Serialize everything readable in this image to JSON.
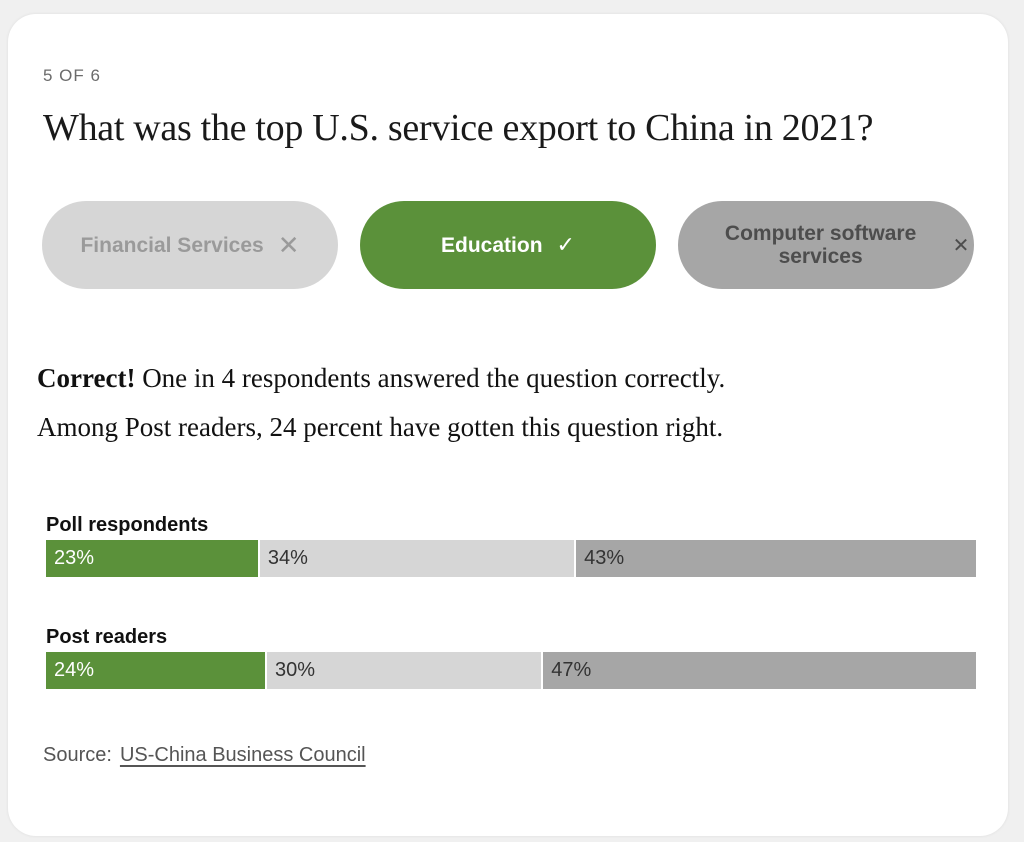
{
  "quiz": {
    "counter": "5 OF 6",
    "question": "What was the top U.S. service export to China in 2021?",
    "options": [
      {
        "label": "Financial Services",
        "mark": "✕",
        "state": "wrong",
        "color": "#d6d6d6"
      },
      {
        "label": "Education",
        "mark": "✓",
        "state": "correct",
        "color": "#5b913a"
      },
      {
        "label": "Computer software services",
        "mark": "✕",
        "state": "wrong",
        "color": "#a6a6a6"
      }
    ]
  },
  "feedback": {
    "verdict": "Correct!",
    "line1": " One in 4 respondents answered the question correctly.",
    "line2": "Among Post readers, 24 percent have gotten this question right."
  },
  "results": [
    {
      "title": "Poll respondents",
      "values": [
        23,
        34,
        43
      ],
      "labels": [
        "23%",
        "34%",
        "43%"
      ]
    },
    {
      "title": "Post readers",
      "values": [
        24,
        30,
        47
      ],
      "labels": [
        "24%",
        "30%",
        "47%"
      ]
    }
  ],
  "colors": {
    "correct": "#5b913a",
    "option_light": "#d6d6d6",
    "option_dark": "#a6a6a6"
  },
  "source": {
    "prefix": "Source:",
    "link_text": "US-China Business Council"
  }
}
